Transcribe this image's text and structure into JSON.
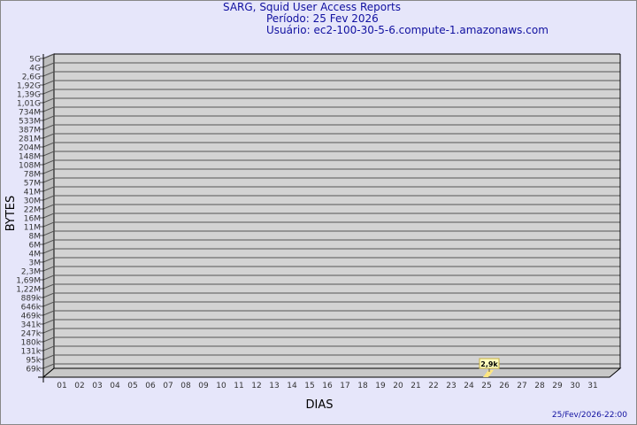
{
  "title": "SARG, Squid User Access Reports",
  "period": "Período: 25 Fev 2026",
  "user": "Usuário: ec2-100-30-5-6.compute-1.amazonaws.com",
  "footer": "25/Fev/2026-22:00",
  "chart_data": {
    "type": "bar",
    "xlabel": "DIAS",
    "ylabel": "BYTES",
    "yticks": [
      "5G",
      "4G",
      "2,6G",
      "1,92G",
      "1,39G",
      "1,01G",
      "734M",
      "533M",
      "387M",
      "281M",
      "204M",
      "148M",
      "108M",
      "78M",
      "57M",
      "41M",
      "30M",
      "22M",
      "16M",
      "11M",
      "8M",
      "6M",
      "4M",
      "3M",
      "2,3M",
      "1,69M",
      "1,22M",
      "889k",
      "646k",
      "469k",
      "341k",
      "247k",
      "180k",
      "131k",
      "95k",
      "69k"
    ],
    "categories": [
      "01",
      "02",
      "03",
      "04",
      "05",
      "06",
      "07",
      "08",
      "09",
      "10",
      "11",
      "12",
      "13",
      "14",
      "15",
      "16",
      "17",
      "18",
      "19",
      "20",
      "21",
      "22",
      "23",
      "24",
      "25",
      "26",
      "27",
      "28",
      "29",
      "30",
      "31"
    ],
    "values": [
      null,
      null,
      null,
      null,
      null,
      null,
      null,
      null,
      null,
      null,
      null,
      null,
      null,
      null,
      null,
      null,
      null,
      null,
      null,
      null,
      null,
      null,
      null,
      null,
      2900,
      null,
      null,
      null,
      null,
      null,
      null
    ],
    "data_labels": {
      "25": "2,9k"
    },
    "grid": true,
    "colors": {
      "plot": "#d3d3d3",
      "bar": "#ffe680",
      "label_bg": "#ffffc0",
      "text": "#1010a0"
    }
  }
}
